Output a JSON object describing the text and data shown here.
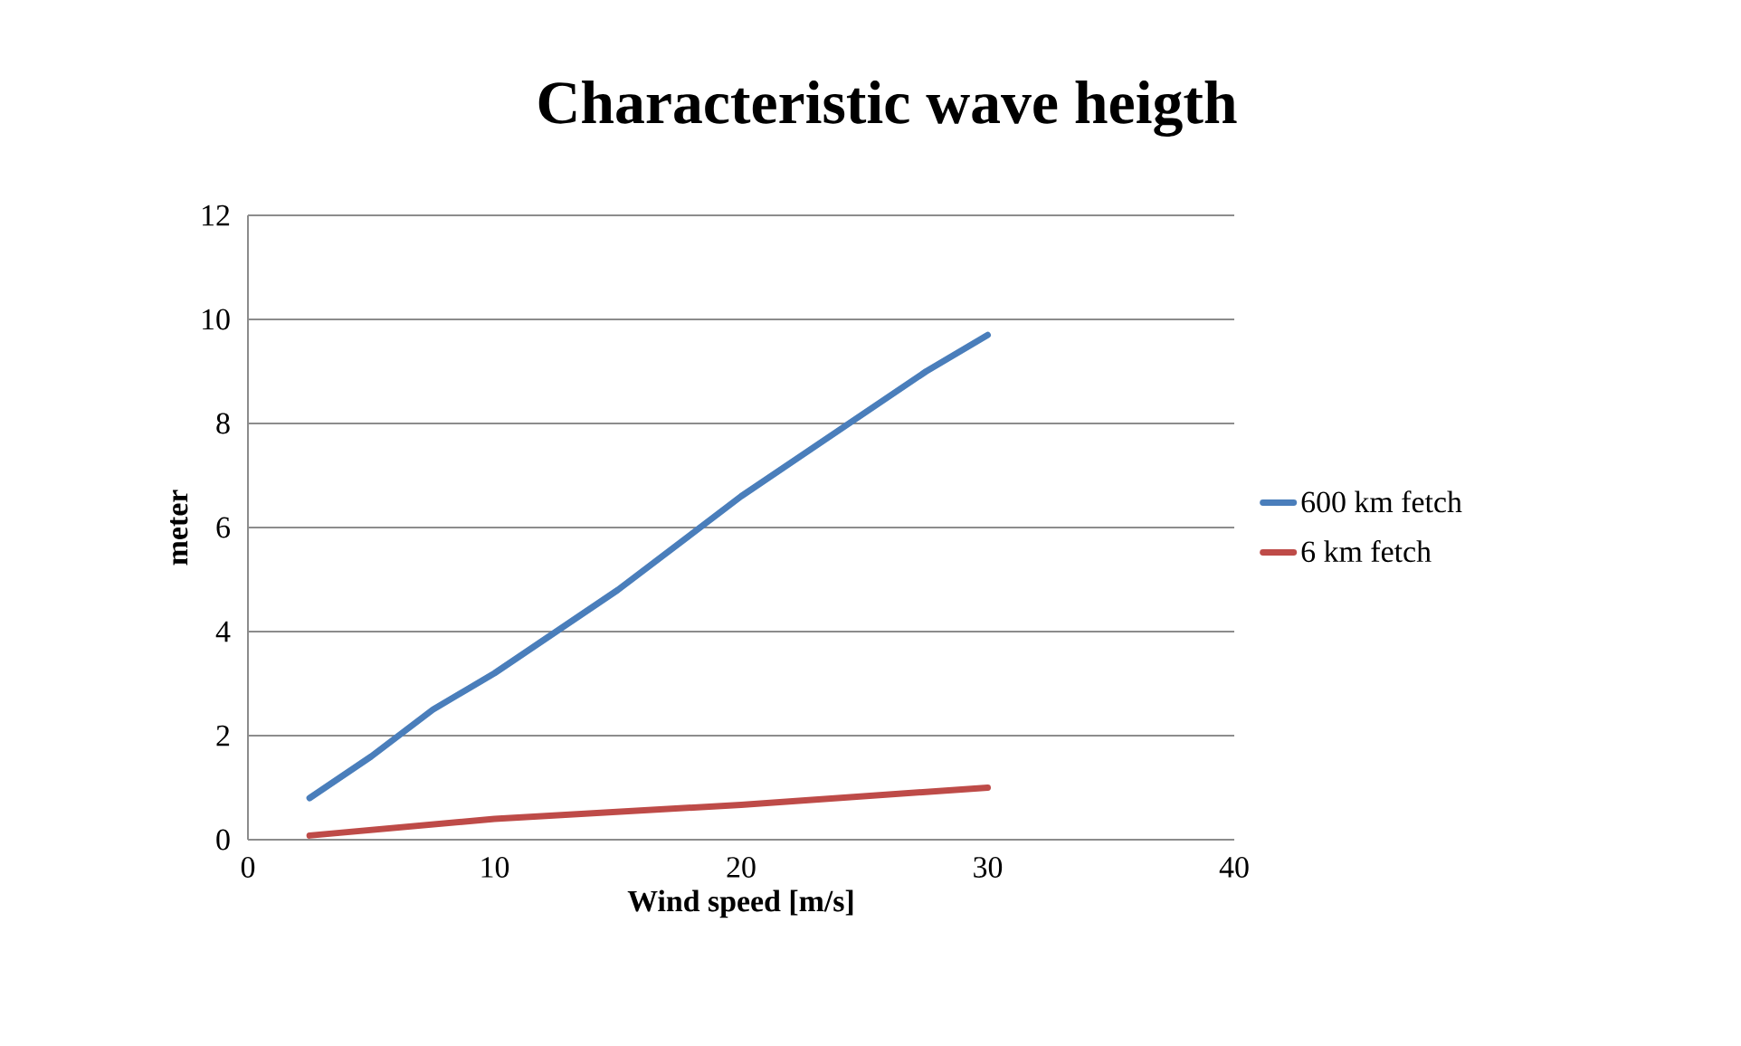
{
  "chart_data": {
    "type": "line",
    "title": "Characteristic wave heigth",
    "xlabel": "Wind speed [m/s]",
    "ylabel": "meter",
    "xlim": [
      0,
      40
    ],
    "xticks": [
      0,
      10,
      20,
      30,
      40
    ],
    "ylim": [
      0,
      12
    ],
    "yticks": [
      0,
      2,
      4,
      6,
      8,
      10,
      12
    ],
    "grid": "y",
    "legend": "right",
    "marker": "none",
    "line_style": "solid",
    "series": [
      {
        "name": "600 km fetch",
        "color": "#4a7ebb",
        "x": [
          2.5,
          5,
          7.5,
          10,
          12.5,
          15,
          17.5,
          20,
          22.5,
          25,
          27.5,
          30
        ],
        "values": [
          0.8,
          1.6,
          2.5,
          3.2,
          4.0,
          4.8,
          5.7,
          6.6,
          7.4,
          8.2,
          9.0,
          9.7
        ]
      },
      {
        "name": "6 km fetch",
        "color": "#be4b48",
        "x": [
          2.5,
          10,
          20,
          30
        ],
        "values": [
          0.08,
          0.4,
          0.67,
          1.0
        ]
      }
    ]
  }
}
